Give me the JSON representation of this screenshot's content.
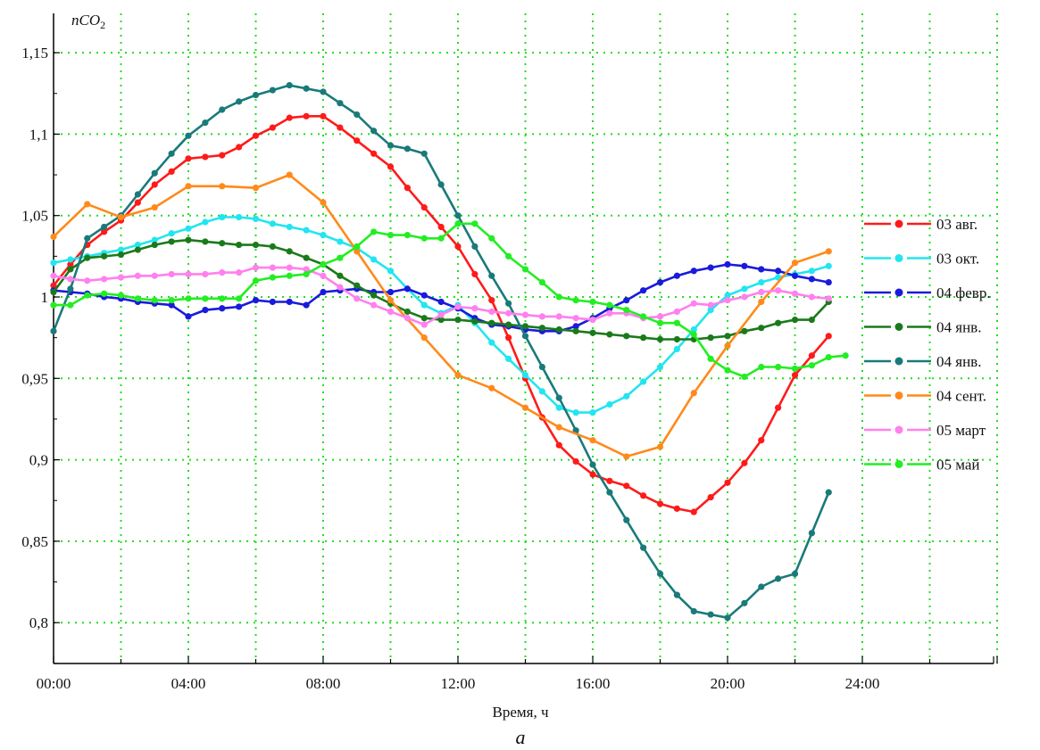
{
  "chart_data": {
    "type": "line",
    "ylabel_main": "nCO",
    "ylabel_sub": "2",
    "xlabel": "Время, ч",
    "sublabel": "а",
    "grid": true,
    "grid_color": "#22dd22",
    "legend_position": "right",
    "xlim": [
      0,
      29.5
    ],
    "ylim": [
      0.775,
      1.17
    ],
    "x_ticks": [
      0,
      4,
      8,
      12,
      16,
      20,
      24
    ],
    "x_tick_labels": [
      "00:00",
      "04:00",
      "08:00",
      "12:00",
      "16:00",
      "20:00",
      "24:00"
    ],
    "y_ticks": [
      0.8,
      0.85,
      0.9,
      0.95,
      1.0,
      1.05,
      1.1,
      1.15
    ],
    "y_tick_labels": [
      "0,8",
      "0,85",
      "0,9",
      "0,95",
      "1",
      "1,05",
      "1,1",
      "1,15"
    ],
    "series": [
      {
        "name": "03 авг.",
        "color": "#ff1a1a",
        "x": [
          0,
          0.5,
          1,
          1.5,
          2,
          2.5,
          3,
          3.5,
          4,
          4.5,
          5,
          5.5,
          6,
          6.5,
          7,
          7.5,
          8,
          8.5,
          9,
          9.5,
          10,
          10.5,
          11,
          11.5,
          12,
          12.5,
          13,
          13.5,
          14,
          14.5,
          15,
          15.5,
          16,
          16.5,
          17,
          17.5,
          18,
          18.5,
          19,
          19.5,
          20,
          20.5,
          21,
          21.5,
          22,
          22.5,
          23
        ],
        "y": [
          1.007,
          1.02,
          1.032,
          1.04,
          1.047,
          1.058,
          1.069,
          1.077,
          1.085,
          1.086,
          1.087,
          1.092,
          1.099,
          1.104,
          1.11,
          1.111,
          1.111,
          1.104,
          1.096,
          1.088,
          1.08,
          1.067,
          1.055,
          1.043,
          1.031,
          1.014,
          0.998,
          0.975,
          0.95,
          0.926,
          0.909,
          0.899,
          0.891,
          0.887,
          0.884,
          0.878,
          0.873,
          0.87,
          0.868,
          0.877,
          0.886,
          0.898,
          0.912,
          0.932,
          0.952,
          0.964,
          0.976
        ]
      },
      {
        "name": "03 окт.",
        "color": "#22e5f0",
        "x": [
          0,
          0.5,
          1,
          1.5,
          2,
          2.5,
          3,
          3.5,
          4,
          4.5,
          5,
          5.5,
          6,
          6.5,
          7,
          7.5,
          8,
          8.5,
          9,
          9.5,
          10,
          10.5,
          11,
          11.5,
          12,
          12.5,
          13,
          13.5,
          14,
          14.5,
          15,
          15.5,
          16,
          16.5,
          17,
          17.5,
          18,
          18.5,
          19,
          19.5,
          20,
          20.5,
          21,
          21.5,
          22,
          22.5,
          23
        ],
        "y": [
          1.021,
          1.023,
          1.025,
          1.027,
          1.029,
          1.032,
          1.035,
          1.039,
          1.042,
          1.046,
          1.049,
          1.049,
          1.048,
          1.045,
          1.043,
          1.041,
          1.038,
          1.034,
          1.03,
          1.023,
          1.016,
          1.005,
          0.995,
          0.99,
          0.995,
          0.984,
          0.972,
          0.962,
          0.952,
          0.942,
          0.932,
          0.929,
          0.929,
          0.934,
          0.939,
          0.948,
          0.957,
          0.968,
          0.98,
          0.992,
          1.001,
          1.005,
          1.009,
          1.012,
          1.014,
          1.016,
          1.019
        ]
      },
      {
        "name": "04 февр.",
        "color": "#1a1add",
        "x": [
          0,
          0.5,
          1,
          1.5,
          2,
          2.5,
          3,
          3.5,
          4,
          4.5,
          5,
          5.5,
          6,
          6.5,
          7,
          7.5,
          8,
          8.5,
          9,
          9.5,
          10,
          10.5,
          11,
          11.5,
          12,
          12.5,
          13,
          13.5,
          14,
          14.5,
          15,
          15.5,
          16,
          16.5,
          17,
          17.5,
          18,
          18.5,
          19,
          19.5,
          20,
          20.5,
          21,
          21.5,
          22,
          22.5,
          23
        ],
        "y": [
          1.004,
          1.003,
          1.002,
          1.0,
          0.999,
          0.997,
          0.996,
          0.995,
          0.988,
          0.992,
          0.993,
          0.994,
          0.998,
          0.997,
          0.997,
          0.995,
          1.003,
          1.004,
          1.005,
          1.003,
          1.003,
          1.005,
          1.001,
          0.997,
          0.993,
          0.987,
          0.983,
          0.982,
          0.98,
          0.979,
          0.979,
          0.982,
          0.987,
          0.993,
          0.998,
          1.004,
          1.009,
          1.013,
          1.016,
          1.018,
          1.02,
          1.019,
          1.017,
          1.016,
          1.013,
          1.011,
          1.009
        ]
      },
      {
        "name": "04 янв.",
        "color": "#1a7a1a",
        "x": [
          0,
          0.5,
          1,
          1.5,
          2,
          2.5,
          3,
          3.5,
          4,
          4.5,
          5,
          5.5,
          6,
          6.5,
          7,
          7.5,
          8,
          8.5,
          9,
          9.5,
          10,
          10.5,
          11,
          11.5,
          12,
          12.5,
          13,
          13.5,
          14,
          14.5,
          15,
          15.5,
          16,
          16.5,
          17,
          17.5,
          18,
          18.5,
          19,
          19.5,
          20,
          20.5,
          21,
          21.5,
          22,
          22.5,
          23
        ],
        "y": [
          1.003,
          1.017,
          1.024,
          1.025,
          1.026,
          1.029,
          1.032,
          1.034,
          1.035,
          1.034,
          1.033,
          1.032,
          1.032,
          1.031,
          1.028,
          1.024,
          1.02,
          1.013,
          1.007,
          1.001,
          0.996,
          0.991,
          0.987,
          0.986,
          0.986,
          0.985,
          0.984,
          0.983,
          0.982,
          0.981,
          0.98,
          0.979,
          0.978,
          0.977,
          0.976,
          0.975,
          0.974,
          0.974,
          0.974,
          0.975,
          0.976,
          0.979,
          0.981,
          0.984,
          0.986,
          0.986,
          0.997
        ]
      },
      {
        "name": "04 янв.",
        "color": "#1a7a7a",
        "x": [
          0,
          0.5,
          1,
          1.5,
          2,
          2.5,
          3,
          3.5,
          4,
          4.5,
          5,
          5.5,
          6,
          6.5,
          7,
          7.5,
          8,
          8.5,
          9,
          9.5,
          10,
          10.5,
          11,
          11.5,
          12,
          12.5,
          13,
          13.5,
          14,
          14.5,
          15,
          15.5,
          16,
          16.5,
          17,
          17.5,
          18,
          18.5,
          19,
          19.5,
          20,
          20.5,
          21,
          21.5,
          22,
          22.5,
          23
        ],
        "y": [
          0.979,
          1.005,
          1.036,
          1.043,
          1.05,
          1.063,
          1.076,
          1.088,
          1.099,
          1.107,
          1.115,
          1.12,
          1.124,
          1.127,
          1.13,
          1.128,
          1.126,
          1.119,
          1.112,
          1.102,
          1.093,
          1.091,
          1.088,
          1.069,
          1.05,
          1.031,
          1.013,
          0.996,
          0.976,
          0.957,
          0.938,
          0.918,
          0.897,
          0.88,
          0.863,
          0.846,
          0.83,
          0.817,
          0.807,
          0.805,
          0.803,
          0.812,
          0.822,
          0.827,
          0.83,
          0.855,
          0.88
        ]
      },
      {
        "name": "04 сент.",
        "color": "#ff8a1a",
        "x": [
          0,
          1,
          2,
          3,
          4,
          5,
          6,
          7,
          8,
          9,
          10,
          11,
          12,
          13,
          14,
          15,
          16,
          17,
          18,
          19,
          20,
          21,
          22,
          23
        ],
        "y": [
          1.037,
          1.057,
          1.049,
          1.055,
          1.068,
          1.068,
          1.067,
          1.075,
          1.058,
          1.028,
          0.998,
          0.975,
          0.952,
          0.944,
          0.932,
          0.92,
          0.912,
          0.902,
          0.908,
          0.941,
          0.97,
          0.997,
          1.021,
          1.028
        ]
      },
      {
        "name": "05 март",
        "color": "#ff80ee",
        "x": [
          0,
          0.5,
          1,
          1.5,
          2,
          2.5,
          3,
          3.5,
          4,
          4.5,
          5,
          5.5,
          6,
          6.5,
          7,
          7.5,
          8,
          8.5,
          9,
          9.5,
          10,
          10.5,
          11,
          11.5,
          12,
          12.5,
          13,
          13.5,
          14,
          14.5,
          15,
          15.5,
          16,
          16.5,
          17,
          17.5,
          18,
          18.5,
          19,
          19.5,
          20,
          20.5,
          21,
          21.5,
          22,
          22.5,
          23
        ],
        "y": [
          1.013,
          1.011,
          1.01,
          1.011,
          1.012,
          1.013,
          1.013,
          1.014,
          1.014,
          1.014,
          1.015,
          1.015,
          1.018,
          1.018,
          1.018,
          1.017,
          1.013,
          1.006,
          0.999,
          0.995,
          0.991,
          0.987,
          0.983,
          0.989,
          0.994,
          0.993,
          0.991,
          0.99,
          0.989,
          0.988,
          0.988,
          0.987,
          0.986,
          0.99,
          0.99,
          0.987,
          0.988,
          0.991,
          0.996,
          0.995,
          0.998,
          1.0,
          1.003,
          1.004,
          1.002,
          1.0,
          0.999
        ]
      },
      {
        "name": "05 май",
        "color": "#22ee22",
        "x": [
          0,
          0.5,
          1,
          1.5,
          2,
          2.5,
          3,
          3.5,
          4,
          4.5,
          5,
          5.5,
          6,
          6.5,
          7,
          7.5,
          8,
          8.5,
          9,
          9.5,
          10,
          10.5,
          11,
          11.5,
          12,
          12.5,
          13,
          13.5,
          14,
          14.5,
          15,
          15.5,
          16,
          16.5,
          17,
          17.5,
          18,
          18.5,
          19,
          19.5,
          20,
          20.5,
          21,
          21.5,
          22,
          22.5,
          23,
          23.5
        ],
        "y": [
          0.995,
          0.995,
          1.001,
          1.002,
          1.001,
          0.999,
          0.998,
          0.998,
          0.999,
          0.999,
          0.999,
          0.999,
          1.01,
          1.012,
          1.013,
          1.014,
          1.02,
          1.024,
          1.031,
          1.04,
          1.038,
          1.038,
          1.036,
          1.036,
          1.045,
          1.045,
          1.036,
          1.025,
          1.017,
          1.009,
          1.0,
          0.998,
          0.997,
          0.995,
          0.992,
          0.988,
          0.984,
          0.984,
          0.977,
          0.962,
          0.955,
          0.951,
          0.957,
          0.957,
          0.956,
          0.958,
          0.963,
          0.964
        ]
      }
    ]
  }
}
